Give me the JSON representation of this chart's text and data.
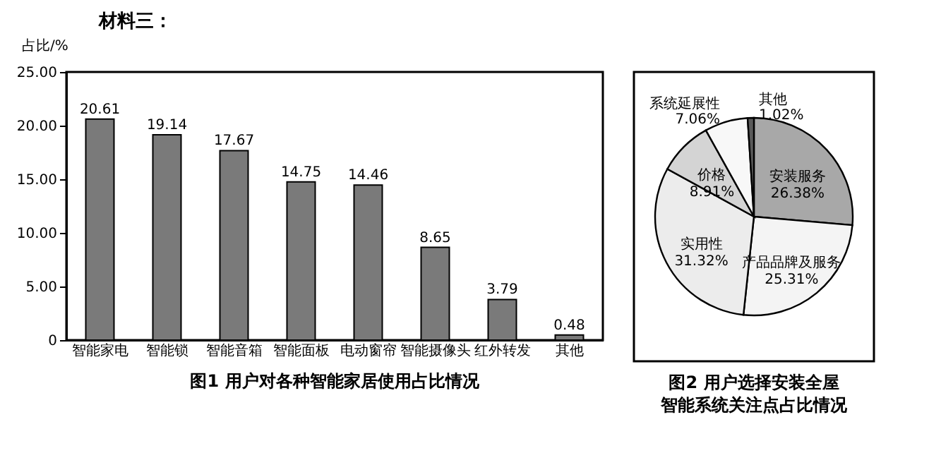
{
  "chart_data": [
    {
      "type": "bar",
      "title": "图1  用户对各种智能家居使用占比情况",
      "annotations": [
        "材料三："
      ],
      "ylabel": "占比/%",
      "categories": [
        "智能家电",
        "智能锁",
        "智能音箱",
        "智能面板",
        "电动窗帘",
        "智能摄像头",
        "红外转发",
        "其他"
      ],
      "values": [
        20.61,
        19.14,
        17.67,
        14.75,
        14.46,
        8.65,
        3.79,
        0.48
      ],
      "color": "#7a7a7a",
      "ylim": [
        0,
        25
      ],
      "yticks": [
        {
          "value": 0,
          "label": "0"
        },
        {
          "value": 5,
          "label": "5.00"
        },
        {
          "value": 10,
          "label": "10.00"
        },
        {
          "value": 15,
          "label": "15.00"
        },
        {
          "value": 20,
          "label": "20.00"
        },
        {
          "value": 25,
          "label": "25.00"
        }
      ],
      "data_labels": true,
      "grid": false,
      "legend": false
    },
    {
      "type": "pie",
      "title": "图2  用户选择安装全屋智能系统关注点占比情况",
      "categories": [
        "安装服务",
        "产品品牌及服务",
        "实用性",
        "价格",
        "系统延展性",
        "其他"
      ],
      "values": [
        26.38,
        25.31,
        31.32,
        8.91,
        7.06,
        1.02
      ],
      "value_labels": [
        "26.38%",
        "25.31%",
        "31.32%",
        "8.91%",
        "7.06%",
        "1.02%"
      ],
      "colors": [
        "#a8a8a8",
        "#f4f4f4",
        "#ececec",
        "#d4d4d4",
        "#f8f8f8",
        "#5a5a5a"
      ],
      "legend": false
    }
  ]
}
